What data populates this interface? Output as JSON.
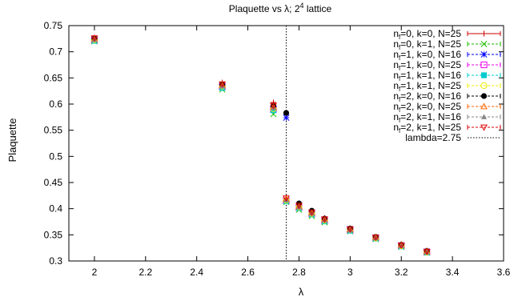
{
  "chart_data": {
    "type": "scatter",
    "title_main": "Plaquette vs λ; 2",
    "title_sup": "4",
    "title_tail": " lattice",
    "xlabel": "λ",
    "ylabel": "Plaquette",
    "xlim": [
      1.9,
      3.6
    ],
    "ylim": [
      0.3,
      0.75
    ],
    "xticks": [
      "2",
      "2.2",
      "2.4",
      "2.6",
      "2.8",
      "3",
      "3.2",
      "3.4",
      "3.6"
    ],
    "xtick_values": [
      2,
      2.2,
      2.4,
      2.6,
      2.8,
      3,
      3.2,
      3.4,
      3.6
    ],
    "yticks": [
      "0.3",
      "0.35",
      "0.4",
      "0.45",
      "0.5",
      "0.55",
      "0.6",
      "0.65",
      "0.7",
      "0.75"
    ],
    "ytick_values": [
      0.3,
      0.35,
      0.4,
      0.45,
      0.5,
      0.55,
      0.6,
      0.65,
      0.7,
      0.75
    ],
    "grid": false,
    "legend_position": "top-right",
    "vline": {
      "x": 2.75,
      "label": "lambda=2.75",
      "color": "#000000"
    },
    "series": [
      {
        "nf": "0",
        "rest": ", k=0, N=25",
        "color": "#cc0000",
        "marker": "plus",
        "x": [
          2.0,
          2.5,
          2.7,
          2.75,
          2.8,
          2.85,
          2.9,
          3.0,
          3.1,
          3.2,
          3.3
        ],
        "y": [
          0.727,
          0.641,
          0.603,
          0.421,
          0.409,
          0.393,
          0.382,
          0.362,
          0.346,
          0.332,
          0.32
        ]
      },
      {
        "nf": "0",
        "rest": ", k=1, N=25",
        "color": "#22bb00",
        "marker": "x",
        "x": [
          2.0,
          2.5,
          2.7,
          2.75,
          2.8,
          2.85,
          2.9,
          3.0,
          3.1,
          3.2,
          3.3
        ],
        "y": [
          0.72,
          0.628,
          0.581,
          0.413,
          0.398,
          0.386,
          0.374,
          0.357,
          0.342,
          0.327,
          0.316
        ]
      },
      {
        "nf": "1",
        "rest": ", k=0, N=16",
        "color": "#0000ff",
        "marker": "star",
        "x": [
          2.0,
          2.5,
          2.7,
          2.75,
          2.8,
          2.85,
          2.9,
          3.0,
          3.1,
          3.2,
          3.3
        ],
        "y": [
          0.724,
          0.635,
          0.592,
          0.574,
          0.405,
          0.392,
          0.379,
          0.361,
          0.345,
          0.33,
          0.318
        ]
      },
      {
        "nf": "1",
        "rest": ", k=0, N=25",
        "color": "#ee00ee",
        "marker": "square",
        "x": [
          2.0,
          2.5,
          2.7,
          2.75,
          2.8,
          2.85,
          2.9,
          3.0,
          3.1,
          3.2,
          3.3
        ],
        "y": [
          0.722,
          0.633,
          0.59,
          0.415,
          0.402,
          0.39,
          0.377,
          0.359,
          0.344,
          0.329,
          0.317
        ]
      },
      {
        "nf": "1",
        "rest": ", k=1, N=16",
        "color": "#00cccc",
        "marker": "filledsquare",
        "x": [
          2.0,
          2.5,
          2.7,
          2.75,
          2.8,
          2.85,
          2.9,
          3.0,
          3.1,
          3.2,
          3.3
        ],
        "y": [
          0.721,
          0.631,
          0.588,
          0.414,
          0.401,
          0.389,
          0.376,
          0.358,
          0.343,
          0.328,
          0.316
        ]
      },
      {
        "nf": "1",
        "rest": ", k=1, N=25",
        "color": "#eeee00",
        "marker": "circle",
        "x": [
          2.0,
          2.5,
          2.7,
          2.75,
          2.8,
          2.85,
          2.9,
          3.0,
          3.1,
          3.2,
          3.3
        ],
        "y": [
          0.723,
          0.634,
          0.591,
          0.416,
          0.403,
          0.391,
          0.378,
          0.36,
          0.344,
          0.329,
          0.317
        ]
      },
      {
        "nf": "2",
        "rest": ", k=0, N=16",
        "color": "#000000",
        "marker": "filledcircle",
        "x": [
          2.0,
          2.5,
          2.7,
          2.75,
          2.8,
          2.85,
          2.9,
          3.0,
          3.1,
          3.2,
          3.3
        ],
        "y": [
          0.725,
          0.637,
          0.596,
          0.583,
          0.41,
          0.396,
          0.381,
          0.362,
          0.346,
          0.331,
          0.319
        ]
      },
      {
        "nf": "2",
        "rest": ", k=0, N=25",
        "color": "#ff6600",
        "marker": "triangle",
        "x": [
          2.0,
          2.5,
          2.7,
          2.75,
          2.8,
          2.85,
          2.9,
          3.0,
          3.1,
          3.2,
          3.3
        ],
        "y": [
          0.724,
          0.636,
          0.594,
          0.418,
          0.404,
          0.392,
          0.379,
          0.36,
          0.345,
          0.33,
          0.318
        ]
      },
      {
        "nf": "2",
        "rest": ", k=1, N=16",
        "color": "#888888",
        "marker": "filledtriangle",
        "x": [
          2.0,
          2.5,
          2.7,
          2.75,
          2.8,
          2.85,
          2.9,
          3.0,
          3.1,
          3.2,
          3.3
        ],
        "y": [
          0.723,
          0.634,
          0.593,
          0.417,
          0.403,
          0.391,
          0.378,
          0.359,
          0.344,
          0.329,
          0.317
        ]
      },
      {
        "nf": "2",
        "rest": ", k=1, N=25",
        "color": "#dd0000",
        "marker": "invtriangle",
        "x": [
          2.0,
          2.5,
          2.7,
          2.75,
          2.8,
          2.85,
          2.9,
          3.0,
          3.1,
          3.2,
          3.3
        ],
        "y": [
          0.726,
          0.638,
          0.597,
          0.42,
          0.406,
          0.393,
          0.38,
          0.361,
          0.345,
          0.33,
          0.318
        ]
      }
    ]
  }
}
